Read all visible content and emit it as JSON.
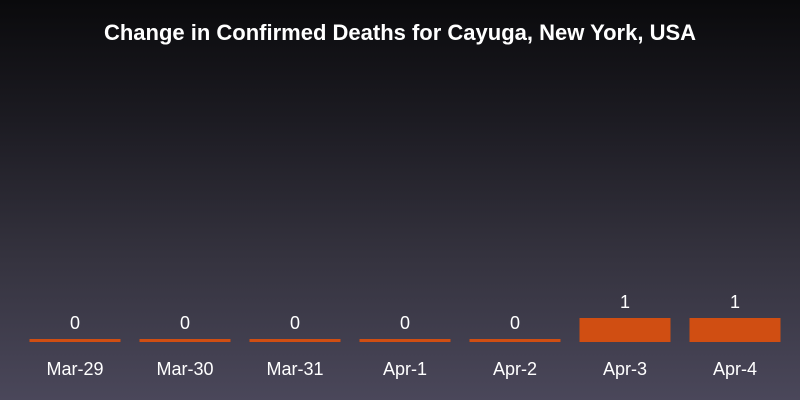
{
  "chart_data": {
    "type": "bar",
    "title": "Change in Confirmed Deaths for Cayuga, New York, USA",
    "categories": [
      "Mar-29",
      "Mar-30",
      "Mar-31",
      "Apr-1",
      "Apr-2",
      "Apr-3",
      "Apr-4"
    ],
    "values": [
      0,
      0,
      0,
      0,
      0,
      1,
      1
    ],
    "data_labels": [
      "0",
      "0",
      "0",
      "0",
      "0",
      "1",
      "1"
    ],
    "xlabel": "",
    "ylabel": "",
    "ylim": [
      0,
      1
    ],
    "grid": false,
    "legend": "none",
    "bar_color": "#d04e12"
  }
}
